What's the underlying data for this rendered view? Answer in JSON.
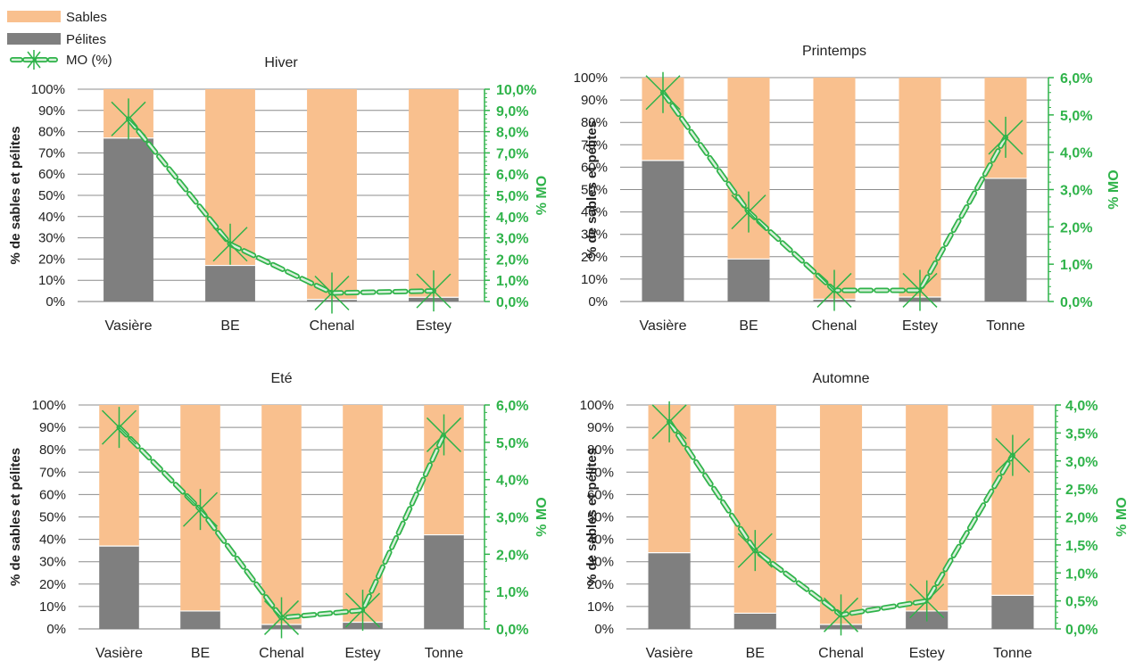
{
  "legend": {
    "sables": "Sables",
    "pelites": "Pélites",
    "mo": "MO (%)"
  },
  "colors": {
    "sables": "#F9C08E",
    "pelites": "#7F7F7F",
    "mo": "#2FB34A",
    "mo_fill": "#D7F0DA",
    "grid": "#8C8C8C"
  },
  "chart_data": [
    {
      "type": "bar",
      "title": "Hiver",
      "categories": [
        "Vasière",
        "BE",
        "Chenal",
        "Estey"
      ],
      "series": [
        {
          "name": "Pélites",
          "values": [
            77,
            17,
            1,
            2
          ]
        },
        {
          "name": "Sables",
          "values": [
            23,
            83,
            99,
            98
          ]
        },
        {
          "name": "MO (%)",
          "axis": "right",
          "values": [
            8.6,
            2.7,
            0.4,
            0.5
          ]
        }
      ],
      "ylabel": "% de sables et pélites",
      "y2label": "% MO",
      "ylim": [
        0,
        100
      ],
      "y2lim": [
        0,
        10
      ],
      "yticks": [
        "0%",
        "10%",
        "20%",
        "30%",
        "40%",
        "50%",
        "60%",
        "70%",
        "80%",
        "90%",
        "100%"
      ],
      "y2ticks": [
        "0,0%",
        "1,0%",
        "2,0%",
        "3,0%",
        "4,0%",
        "5,0%",
        "6,0%",
        "7,0%",
        "8,0%",
        "9,0%",
        "10,0%"
      ],
      "grid": true
    },
    {
      "type": "bar",
      "title": "Printemps",
      "categories": [
        "Vasière",
        "BE",
        "Chenal",
        "Estey",
        "Tonne"
      ],
      "series": [
        {
          "name": "Pélites",
          "values": [
            63,
            19,
            1,
            2,
            55
          ]
        },
        {
          "name": "Sables",
          "values": [
            37,
            81,
            99,
            98,
            45
          ]
        },
        {
          "name": "MO (%)",
          "axis": "right",
          "values": [
            5.6,
            2.4,
            0.3,
            0.3,
            4.4
          ]
        }
      ],
      "ylabel": "% de sables et pélites",
      "y2label": "% MO",
      "ylim": [
        0,
        100
      ],
      "y2lim": [
        0,
        6
      ],
      "yticks": [
        "0%",
        "10%",
        "20%",
        "30%",
        "40%",
        "50%",
        "60%",
        "70%",
        "80%",
        "90%",
        "100%"
      ],
      "y2ticks": [
        "0,0%",
        "1,0%",
        "2,0%",
        "3,0%",
        "4,0%",
        "5,0%",
        "6,0%"
      ],
      "grid": true
    },
    {
      "type": "bar",
      "title": "Eté",
      "categories": [
        "Vasière",
        "BE",
        "Chenal",
        "Estey",
        "Tonne"
      ],
      "series": [
        {
          "name": "Pélites",
          "values": [
            37,
            8,
            2,
            3,
            42
          ]
        },
        {
          "name": "Sables",
          "values": [
            63,
            92,
            98,
            97,
            58
          ]
        },
        {
          "name": "MO (%)",
          "axis": "right",
          "values": [
            5.4,
            3.2,
            0.3,
            0.5,
            5.2
          ]
        }
      ],
      "ylabel": "% de sables et pélites",
      "y2label": "% MO",
      "ylim": [
        0,
        100
      ],
      "y2lim": [
        0,
        6
      ],
      "yticks": [
        "0%",
        "10%",
        "20%",
        "30%",
        "40%",
        "50%",
        "60%",
        "70%",
        "80%",
        "90%",
        "100%"
      ],
      "y2ticks": [
        "0,0%",
        "1,0%",
        "2,0%",
        "3,0%",
        "4,0%",
        "5,0%",
        "6,0%"
      ],
      "grid": true
    },
    {
      "type": "bar",
      "title": "Automne",
      "categories": [
        "Vasière",
        "BE",
        "Chenal",
        "Estey",
        "Tonne"
      ],
      "series": [
        {
          "name": "Pélites",
          "values": [
            34,
            7,
            2,
            8,
            15
          ]
        },
        {
          "name": "Sables",
          "values": [
            66,
            93,
            98,
            92,
            85
          ]
        },
        {
          "name": "MO (%)",
          "axis": "right",
          "values": [
            3.7,
            1.4,
            0.25,
            0.5,
            3.1
          ]
        }
      ],
      "ylabel": "% de sables et pélites",
      "y2label": "% MO",
      "ylim": [
        0,
        100
      ],
      "y2lim": [
        0,
        4
      ],
      "yticks": [
        "0%",
        "10%",
        "20%",
        "30%",
        "40%",
        "50%",
        "60%",
        "70%",
        "80%",
        "90%",
        "100%"
      ],
      "y2ticks": [
        "0,0%",
        "0,5%",
        "1,0%",
        "1,5%",
        "2,0%",
        "2,5%",
        "3,0%",
        "3,5%",
        "4,0%"
      ],
      "grid": true
    }
  ]
}
